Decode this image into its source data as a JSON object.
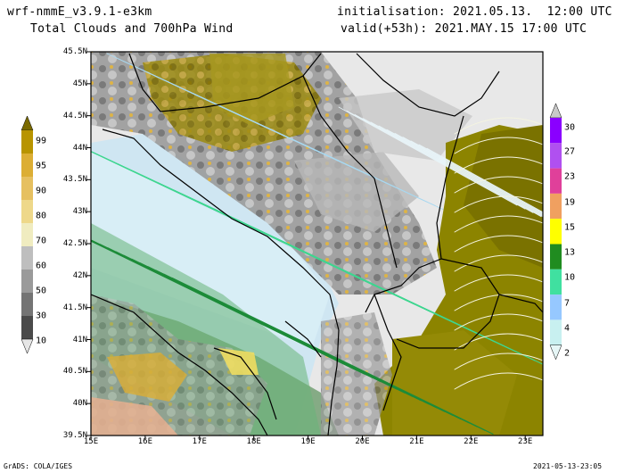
{
  "header": {
    "model": "wrf-nmmE_v3.9.1-e3km",
    "product": "Total Clouds and 700hPa Wind",
    "init": "initialisation: 2021.05.13.  12:00 UTC",
    "valid": "valid(+53h): 2021.MAY.15 17:00 UTC"
  },
  "map": {
    "lat_labels": [
      "45.5N",
      "45N",
      "44.5N",
      "44N",
      "43.5N",
      "43N",
      "42.5N",
      "42N",
      "41.5N",
      "41N",
      "40.5N",
      "40N",
      "39.5N"
    ],
    "lon_labels": [
      "15E",
      "16E",
      "17E",
      "18E",
      "19E",
      "20E",
      "21E",
      "22E",
      "23E"
    ]
  },
  "cloud_colorbar": {
    "labels": [
      "99",
      "95",
      "90",
      "80",
      "70",
      "60",
      "50",
      "30",
      "10"
    ],
    "colors": [
      "#7a6a00",
      "#b89400",
      "#dcae34",
      "#e6c060",
      "#eed88a",
      "#f0ecc0",
      "#bebebe",
      "#9a9a9a",
      "#747474",
      "#4a4a4a",
      "#e6e6e6"
    ]
  },
  "wind_colorbar": {
    "labels": [
      "30",
      "27",
      "23",
      "19",
      "15",
      "13",
      "10",
      "7",
      "4",
      "2"
    ],
    "colors": [
      "#c8c8c8",
      "#8a00ff",
      "#b050f0",
      "#e0409a",
      "#f0a060",
      "#ffff00",
      "#208c20",
      "#40e0a0",
      "#96c8ff",
      "#c8f0f0",
      "#e6f6f6"
    ]
  },
  "footer": {
    "left": "GrADS: COLA/IGES",
    "right": "2021-05-13-23:05"
  }
}
